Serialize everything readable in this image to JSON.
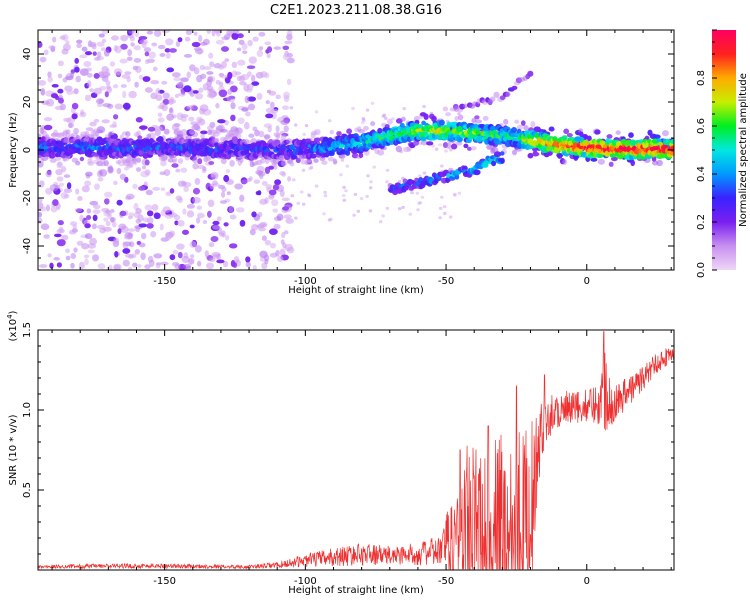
{
  "title": "C2E1.2023.211.08.38.G16",
  "colors": {
    "snr_line": "#ee3030",
    "axis": "#000000",
    "colormap": [
      "#eed6f6",
      "#c890f0",
      "#7a1ff0",
      "#3a22ff",
      "#0099ff",
      "#00e8e0",
      "#00ee20",
      "#c8ee00",
      "#ffaa00",
      "#ff2020",
      "#ff0060"
    ]
  },
  "chart_data": [
    {
      "type": "heatmap",
      "xlabel": "Height of straight line (km)",
      "ylabel": "Frequency (Hz)",
      "xlim": [
        -195,
        31
      ],
      "ylim": [
        -50,
        50
      ],
      "x_ticks": [
        -150,
        -100,
        -50,
        0
      ],
      "x_tick_labels": [
        "-150",
        "-100",
        "-50",
        "0"
      ],
      "y_ticks": [
        -40,
        -20,
        0,
        20,
        40
      ],
      "y_tick_labels": [
        "-40",
        "-20",
        "0",
        "20",
        "40"
      ],
      "colorbar": {
        "label": "Normalized spectral amplitude",
        "range": [
          0,
          1
        ],
        "ticks": [
          0.0,
          0.2,
          0.4,
          0.6,
          0.8
        ],
        "tick_labels": [
          "0.0",
          "0.2",
          "0.4",
          "0.6",
          "0.8"
        ]
      },
      "ridge": {
        "x": [
          -195,
          -150,
          -110,
          -100,
          -90,
          -80,
          -70,
          -60,
          -50,
          -40,
          -30,
          -25,
          -20,
          -10,
          0,
          10,
          20,
          31
        ],
        "freq": [
          1,
          1,
          0,
          0.5,
          1.5,
          3,
          6,
          8,
          8,
          7,
          6,
          5,
          4,
          2,
          1,
          0.5,
          0.5,
          0.5
        ],
        "amplitude": [
          0.35,
          0.32,
          0.28,
          0.35,
          0.45,
          0.5,
          0.6,
          0.7,
          0.72,
          0.65,
          0.55,
          0.5,
          0.78,
          0.88,
          0.95,
          0.97,
          0.98,
          1.0
        ]
      },
      "branch_low": {
        "x": [
          -70,
          -60,
          -50,
          -40,
          -35,
          -30
        ],
        "freq": [
          -16,
          -14,
          -11,
          -8,
          -5,
          -3
        ],
        "amplitude": [
          0.3,
          0.35,
          0.4,
          0.45,
          0.5,
          0.5
        ]
      },
      "branch_high": {
        "x": [
          -50,
          -40,
          -30,
          -25,
          -20
        ],
        "freq": [
          16,
          19,
          23,
          27,
          31
        ],
        "amplitude": [
          0.15,
          0.2,
          0.2,
          0.18,
          0.15
        ]
      },
      "noise_region_x": [
        -195,
        -105
      ]
    },
    {
      "type": "line",
      "xlabel": "Height of straight line (km)",
      "ylabel": "SNR (10 * v/v)",
      "y_multiplier": "(x10",
      "y_multiplier_exp": "4",
      "y_multiplier_close": ")",
      "xlim": [
        -195,
        31
      ],
      "ylim": [
        0,
        1.5
      ],
      "x_ticks": [
        -150,
        -100,
        -50,
        0
      ],
      "x_tick_labels": [
        "-150",
        "-100",
        "-50",
        "0"
      ],
      "y_ticks": [
        0.5,
        1.0,
        1.5
      ],
      "y_tick_labels": [
        "0.5",
        "1.0",
        "1.5"
      ],
      "envelope": {
        "x": [
          -195,
          -170,
          -150,
          -120,
          -110,
          -100,
          -90,
          -80,
          -70,
          -60,
          -52,
          -45,
          -42,
          -38,
          -34,
          -30,
          -26,
          -22,
          -19,
          -17,
          -15,
          -10,
          -5,
          0,
          5,
          6,
          8,
          10,
          15,
          20,
          25,
          31
        ],
        "base": [
          0.02,
          0.025,
          0.025,
          0.02,
          0.03,
          0.06,
          0.08,
          0.1,
          0.09,
          0.1,
          0.12,
          0.2,
          0.3,
          0.25,
          0.2,
          0.28,
          0.3,
          0.35,
          0.45,
          0.75,
          0.95,
          1.0,
          1.0,
          1.03,
          1.05,
          1.15,
          1.08,
          1.05,
          1.12,
          1.2,
          1.3,
          1.36
        ],
        "amp": [
          0.01,
          0.015,
          0.015,
          0.01,
          0.02,
          0.04,
          0.06,
          0.07,
          0.06,
          0.07,
          0.1,
          0.45,
          0.55,
          0.5,
          0.55,
          0.65,
          0.6,
          0.55,
          0.5,
          0.25,
          0.15,
          0.12,
          0.12,
          0.1,
          0.15,
          0.3,
          0.2,
          0.12,
          0.1,
          0.08,
          0.07,
          0.05
        ]
      },
      "peaks": [
        {
          "x": 6,
          "y": 1.49
        },
        {
          "x": -25,
          "y": 1.15
        },
        {
          "x": -15,
          "y": 1.22
        },
        {
          "x": -35,
          "y": 0.9
        },
        {
          "x": -45,
          "y": 0.75
        }
      ]
    }
  ]
}
